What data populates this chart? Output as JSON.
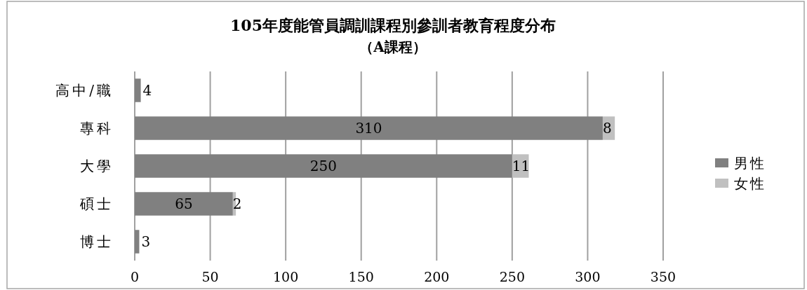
{
  "chart_data": {
    "type": "bar",
    "orientation": "horizontal",
    "stacked": true,
    "title": "105年度能管員調訓課程別參訓者教育程度分布",
    "subtitle": "（A課程）",
    "categories": [
      "高中/職",
      "專科",
      "大學",
      "碩士",
      "博士"
    ],
    "series": [
      {
        "name": "男性",
        "color": "#808080",
        "values": [
          4,
          310,
          250,
          65,
          3
        ]
      },
      {
        "name": "女性",
        "color": "#c0c0c0",
        "values": [
          null,
          8,
          11,
          2,
          null
        ]
      }
    ],
    "xlim": [
      0,
      350
    ],
    "xticks": [
      0,
      50,
      100,
      150,
      200,
      250,
      300,
      350
    ],
    "grid": "x",
    "legend": "right",
    "data_labels": true
  }
}
